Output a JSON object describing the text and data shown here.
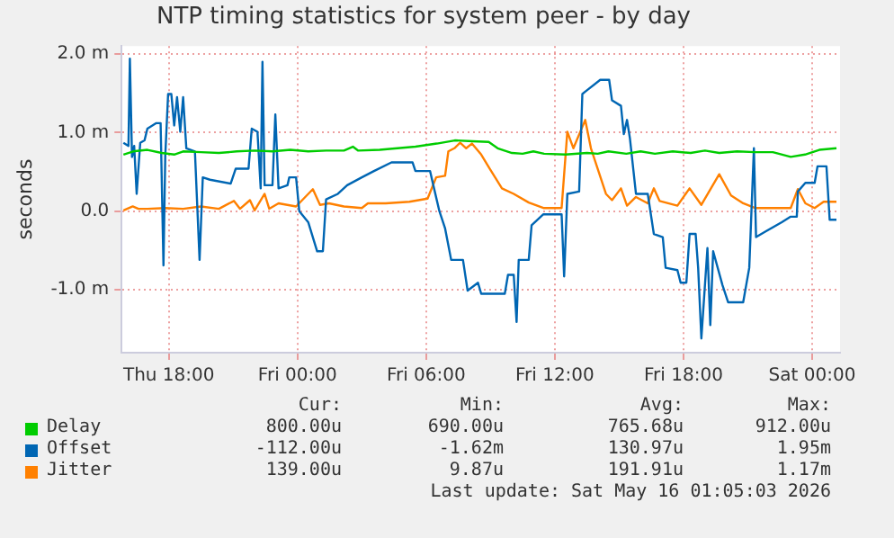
{
  "chart_data": {
    "type": "line",
    "title": "NTP timing statistics for system peer - by day",
    "ylabel": "seconds",
    "xlim": [
      "2026-05-14T15:48",
      "2026-05-16T01:18"
    ],
    "xticks": [
      {
        "value": "2026-05-14T18:00",
        "label": "Thu 18:00"
      },
      {
        "value": "2026-05-15T00:00",
        "label": "Fri 00:00"
      },
      {
        "value": "2026-05-15T06:00",
        "label": "Fri 06:00"
      },
      {
        "value": "2026-05-15T12:00",
        "label": "Fri 12:00"
      },
      {
        "value": "2026-05-15T18:00",
        "label": "Fri 18:00"
      },
      {
        "value": "2026-05-16T00:00",
        "label": "Sat 00:00"
      }
    ],
    "ylim": [
      -1.8,
      2.1
    ],
    "yticks": [
      {
        "value": -1,
        "label": "-1.0 m"
      },
      {
        "value": 0,
        "label": "0.0"
      },
      {
        "value": 1,
        "label": "1.0 m"
      },
      {
        "value": 2,
        "label": "2.0 m"
      }
    ],
    "grid": true,
    "legend": "bottom",
    "marker": "none",
    "line_style": "solid",
    "series": [
      {
        "name": "Delay",
        "color": "#00cc00",
        "x": [
          "2026-05-14T15:53",
          "2026-05-14T16:20",
          "2026-05-14T17:00",
          "2026-05-14T17:40",
          "2026-05-14T18:15",
          "2026-05-14T18:40",
          "2026-05-14T19:30",
          "2026-05-14T20:20",
          "2026-05-14T21:10",
          "2026-05-14T22:00",
          "2026-05-14T22:50",
          "2026-05-14T23:40",
          "2026-05-15T00:30",
          "2026-05-15T01:20",
          "2026-05-15T02:10",
          "2026-05-15T02:35",
          "2026-05-15T02:50",
          "2026-05-15T03:50",
          "2026-05-15T04:40",
          "2026-05-15T05:30",
          "2026-05-15T06:30",
          "2026-05-15T07:20",
          "2026-05-15T08:10",
          "2026-05-15T08:55",
          "2026-05-15T09:20",
          "2026-05-15T10:00",
          "2026-05-15T10:30",
          "2026-05-15T11:00",
          "2026-05-15T11:30",
          "2026-05-15T12:30",
          "2026-05-15T13:30",
          "2026-05-15T14:00",
          "2026-05-15T14:30",
          "2026-05-15T15:20",
          "2026-05-15T16:00",
          "2026-05-15T16:40",
          "2026-05-15T17:30",
          "2026-05-15T18:20",
          "2026-05-15T19:00",
          "2026-05-15T19:40",
          "2026-05-15T20:30",
          "2026-05-15T21:20",
          "2026-05-15T22:10",
          "2026-05-15T23:00",
          "2026-05-15T23:40",
          "2026-05-16T00:20",
          "2026-05-16T01:08"
        ],
        "values": [
          0.72,
          0.76,
          0.78,
          0.74,
          0.72,
          0.76,
          0.75,
          0.74,
          0.76,
          0.77,
          0.76,
          0.78,
          0.76,
          0.77,
          0.77,
          0.82,
          0.77,
          0.78,
          0.8,
          0.82,
          0.86,
          0.9,
          0.89,
          0.88,
          0.8,
          0.74,
          0.73,
          0.76,
          0.73,
          0.72,
          0.74,
          0.73,
          0.76,
          0.73,
          0.76,
          0.73,
          0.76,
          0.74,
          0.77,
          0.74,
          0.76,
          0.75,
          0.75,
          0.69,
          0.72,
          0.78,
          0.8
        ]
      },
      {
        "name": "Offset",
        "color": "#0066b3",
        "x": [
          "2026-05-14T15:53",
          "2026-05-14T16:07",
          "2026-05-14T16:11",
          "2026-05-14T16:17",
          "2026-05-14T16:23",
          "2026-05-14T16:30",
          "2026-05-14T16:40",
          "2026-05-14T16:52",
          "2026-05-14T17:00",
          "2026-05-14T17:25",
          "2026-05-14T17:37",
          "2026-05-14T17:45",
          "2026-05-14T17:50",
          "2026-05-14T17:58",
          "2026-05-14T18:07",
          "2026-05-14T18:15",
          "2026-05-14T18:23",
          "2026-05-14T18:32",
          "2026-05-14T18:40",
          "2026-05-14T18:49",
          "2026-05-14T19:13",
          "2026-05-14T19:26",
          "2026-05-14T19:35",
          "2026-05-14T19:55",
          "2026-05-14T20:53",
          "2026-05-14T21:07",
          "2026-05-14T21:43",
          "2026-05-14T21:52",
          "2026-05-14T22:08",
          "2026-05-14T22:17",
          "2026-05-14T22:22",
          "2026-05-14T22:28",
          "2026-05-14T22:50",
          "2026-05-14T22:58",
          "2026-05-14T23:07",
          "2026-05-14T23:32",
          "2026-05-14T23:37",
          "2026-05-14T23:56",
          "2026-05-15T00:05",
          "2026-05-15T00:30",
          "2026-05-15T00:55",
          "2026-05-15T01:11",
          "2026-05-15T01:20",
          "2026-05-15T01:53",
          "2026-05-15T02:19",
          "2026-05-15T03:00",
          "2026-05-15T03:34",
          "2026-05-15T04:23",
          "2026-05-15T05:22",
          "2026-05-15T05:30",
          "2026-05-15T06:11",
          "2026-05-15T06:20",
          "2026-05-15T06:37",
          "2026-05-15T06:53",
          "2026-05-15T07:10",
          "2026-05-15T07:43",
          "2026-05-15T07:56",
          "2026-05-15T08:25",
          "2026-05-15T08:34",
          "2026-05-15T09:40",
          "2026-05-15T09:49",
          "2026-05-15T10:05",
          "2026-05-15T10:13",
          "2026-05-15T10:19",
          "2026-05-15T10:47",
          "2026-05-15T10:55",
          "2026-05-15T11:28",
          "2026-05-15T12:19",
          "2026-05-15T12:26",
          "2026-05-15T12:35",
          "2026-05-15T13:08",
          "2026-05-15T13:17",
          "2026-05-15T13:25",
          "2026-05-15T14:07",
          "2026-05-15T14:32",
          "2026-05-15T14:40",
          "2026-05-15T15:05",
          "2026-05-15T15:13",
          "2026-05-15T15:22",
          "2026-05-15T15:30",
          "2026-05-15T15:47",
          "2026-05-15T16:20",
          "2026-05-15T16:37",
          "2026-05-15T17:02",
          "2026-05-15T17:10",
          "2026-05-15T17:43",
          "2026-05-15T17:52",
          "2026-05-15T18:08",
          "2026-05-15T18:17",
          "2026-05-15T18:34",
          "2026-05-15T18:41",
          "2026-05-15T18:50",
          "2026-05-15T19:07",
          "2026-05-15T19:15",
          "2026-05-15T19:23",
          "2026-05-15T19:49",
          "2026-05-15T20:05",
          "2026-05-15T20:47",
          "2026-05-15T21:04",
          "2026-05-15T21:17",
          "2026-05-15T21:23",
          "2026-05-15T21:53",
          "2026-05-15T22:35",
          "2026-05-15T23:00",
          "2026-05-15T23:17",
          "2026-05-15T23:20",
          "2026-05-15T23:41",
          "2026-05-16T00:07",
          "2026-05-16T00:15",
          "2026-05-16T00:40",
          "2026-05-16T00:49",
          "2026-05-16T01:08"
        ],
        "values": [
          0.87,
          0.83,
          1.94,
          0.69,
          0.83,
          0.22,
          0.87,
          0.9,
          1.05,
          1.12,
          1.12,
          -0.69,
          0.7,
          1.49,
          1.49,
          1.09,
          1.45,
          1.01,
          1.45,
          0.8,
          0.76,
          -0.62,
          0.43,
          0.4,
          0.35,
          0.54,
          0.54,
          1.05,
          1.01,
          0.29,
          1.9,
          0.33,
          0.33,
          1.23,
          0.29,
          0.33,
          0.43,
          0.43,
          0.0,
          -0.14,
          -0.51,
          -0.51,
          0.15,
          0.22,
          0.33,
          0.43,
          0.51,
          0.62,
          0.62,
          0.51,
          0.51,
          0.33,
          0.0,
          -0.22,
          -0.62,
          -0.62,
          -1.01,
          -0.91,
          -1.05,
          -1.05,
          -0.81,
          -0.81,
          -1.41,
          -0.62,
          -0.62,
          -0.18,
          -0.04,
          -0.04,
          -0.83,
          0.22,
          0.25,
          1.49,
          1.52,
          1.67,
          1.67,
          1.41,
          1.34,
          0.98,
          1.16,
          0.93,
          0.22,
          0.22,
          -0.29,
          -0.33,
          -0.72,
          -0.75,
          -0.91,
          -0.91,
          -0.29,
          -0.29,
          -0.72,
          -1.62,
          -0.47,
          -1.45,
          -0.51,
          -0.94,
          -1.16,
          -1.16,
          -0.72,
          0.8,
          -0.33,
          -0.25,
          -0.14,
          -0.07,
          -0.07,
          0.25,
          0.36,
          0.36,
          0.57,
          0.57,
          -0.11,
          -0.11
        ]
      },
      {
        "name": "Jitter",
        "color": "#ff8000",
        "x": [
          "2026-05-14T15:53",
          "2026-05-14T16:19",
          "2026-05-14T16:35",
          "2026-05-14T17:00",
          "2026-05-14T17:50",
          "2026-05-14T18:40",
          "2026-05-14T19:30",
          "2026-05-14T20:20",
          "2026-05-14T21:02",
          "2026-05-14T21:19",
          "2026-05-14T21:47",
          "2026-05-14T22:00",
          "2026-05-14T22:28",
          "2026-05-14T22:41",
          "2026-05-14T23:07",
          "2026-05-14T23:56",
          "2026-05-15T00:43",
          "2026-05-15T01:03",
          "2026-05-15T01:28",
          "2026-05-15T02:10",
          "2026-05-15T03:00",
          "2026-05-15T03:17",
          "2026-05-15T04:07",
          "2026-05-15T05:13",
          "2026-05-15T06:04",
          "2026-05-15T06:28",
          "2026-05-15T06:53",
          "2026-05-15T07:02",
          "2026-05-15T07:19",
          "2026-05-15T07:35",
          "2026-05-15T07:52",
          "2026-05-15T08:08",
          "2026-05-15T08:34",
          "2026-05-15T08:58",
          "2026-05-15T09:32",
          "2026-05-15T10:05",
          "2026-05-15T10:47",
          "2026-05-15T11:28",
          "2026-05-15T12:19",
          "2026-05-15T12:35",
          "2026-05-15T12:52",
          "2026-05-15T13:25",
          "2026-05-15T13:41",
          "2026-05-15T14:23",
          "2026-05-15T14:40",
          "2026-05-15T15:05",
          "2026-05-15T15:22",
          "2026-05-15T15:47",
          "2026-05-15T16:20",
          "2026-05-15T16:37",
          "2026-05-15T16:53",
          "2026-05-15T17:43",
          "2026-05-15T18:17",
          "2026-05-15T18:50",
          "2026-05-15T19:40",
          "2026-05-15T20:13",
          "2026-05-15T20:47",
          "2026-05-15T21:20",
          "2026-05-15T23:00",
          "2026-05-15T23:20",
          "2026-05-15T23:41",
          "2026-05-16T00:07",
          "2026-05-16T00:32",
          "2026-05-16T01:08"
        ],
        "values": [
          0.01,
          0.06,
          0.03,
          0.03,
          0.04,
          0.03,
          0.06,
          0.03,
          0.13,
          0.03,
          0.14,
          0.01,
          0.22,
          0.03,
          0.1,
          0.06,
          0.28,
          0.08,
          0.1,
          0.06,
          0.04,
          0.1,
          0.1,
          0.12,
          0.16,
          0.43,
          0.45,
          0.76,
          0.8,
          0.87,
          0.8,
          0.86,
          0.72,
          0.54,
          0.29,
          0.22,
          0.11,
          0.04,
          0.04,
          1.01,
          0.8,
          1.16,
          0.8,
          0.22,
          0.14,
          0.29,
          0.07,
          0.18,
          0.1,
          0.29,
          0.13,
          0.07,
          0.29,
          0.08,
          0.47,
          0.2,
          0.1,
          0.04,
          0.04,
          0.28,
          0.1,
          0.04,
          0.12,
          0.12
        ]
      }
    ],
    "annotations": [
      "Cur:",
      "Min:",
      "Avg:",
      "Max:",
      "800.00u",
      "690.00u",
      "765.68u",
      "912.00u",
      "-112.00u",
      "-1.62m",
      "130.97u",
      "1.95m",
      "139.00u",
      "9.87u",
      "191.91u",
      "1.17m",
      "Last update: Sat May 16 01:05:03 2026"
    ]
  }
}
